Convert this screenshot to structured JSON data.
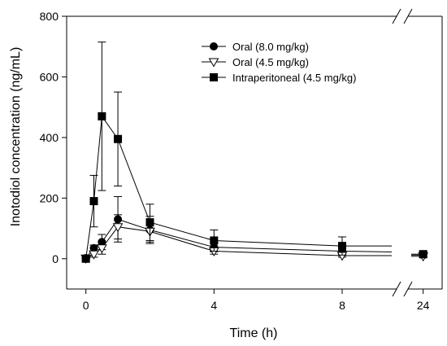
{
  "chart_data": {
    "type": "line",
    "xlabel": "Time (h)",
    "ylabel": "Inotodiol concentration (ng/mL)",
    "ylim": [
      -100,
      800
    ],
    "y_ticks": [
      0,
      200,
      400,
      600,
      800
    ],
    "y_tick_labels": [
      "0",
      "200",
      "400",
      "600",
      "800"
    ],
    "x_axis_break": true,
    "x_segments": [
      {
        "xlim": [
          -0.6,
          9.7
        ],
        "ticks": [
          0,
          4,
          8
        ],
        "tick_labels": [
          "0",
          "4",
          "8"
        ]
      },
      {
        "xlim": [
          23.2,
          25.0
        ],
        "ticks": [
          24
        ],
        "tick_labels": [
          "24"
        ]
      }
    ],
    "legend_position": "top-right",
    "series": [
      {
        "name": "Oral (8.0 mg/kg)",
        "marker": "circle-filled",
        "x": [
          0,
          0.25,
          0.5,
          1,
          2,
          4,
          8,
          24
        ],
        "y": [
          2,
          35,
          55,
          130,
          95,
          38,
          25,
          12
        ],
        "err": [
          2,
          10,
          25,
          75,
          45,
          15,
          15,
          8
        ]
      },
      {
        "name": "Oral (4.5 mg/kg)",
        "marker": "triangle-down-open",
        "x": [
          0,
          0.25,
          0.5,
          1,
          2,
          4,
          8,
          24
        ],
        "y": [
          1,
          15,
          35,
          105,
          90,
          25,
          10,
          8
        ],
        "err": [
          1,
          10,
          20,
          40,
          35,
          10,
          5,
          5
        ]
      },
      {
        "name": "Intraperitoneal (4.5 mg/kg)",
        "marker": "square-filled",
        "x": [
          0,
          0.25,
          0.5,
          1,
          2,
          4,
          8,
          24
        ],
        "y": [
          0,
          190,
          470,
          395,
          120,
          60,
          42,
          15
        ],
        "err": [
          2,
          85,
          245,
          155,
          60,
          35,
          30,
          8
        ]
      }
    ]
  }
}
